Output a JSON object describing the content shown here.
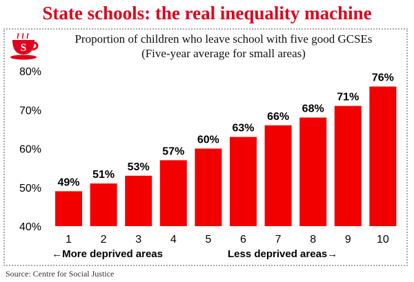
{
  "header": {
    "title": "State schools: the real inequality machine",
    "subtitle_line1": "Proportion of children who leave school with five good GCSEs",
    "subtitle_line2": "(Five-year average for small areas)"
  },
  "logo": {
    "letter": "S",
    "color": "#e0001b"
  },
  "footer": {
    "source": "Source: Centre for Social Justice"
  },
  "colors": {
    "bar": "#f20000",
    "title": "#e0001b"
  },
  "chart_data": {
    "type": "bar",
    "title": "",
    "xlabel": "",
    "ylabel": "",
    "categories": [
      "1",
      "2",
      "3",
      "4",
      "5",
      "6",
      "7",
      "8",
      "9",
      "10"
    ],
    "values": [
      49,
      51,
      53,
      57,
      60,
      63,
      66,
      68,
      71,
      76
    ],
    "data_labels": [
      "49%",
      "51%",
      "53%",
      "57%",
      "60%",
      "63%",
      "66%",
      "68%",
      "71%",
      "76%"
    ],
    "ylim": [
      40,
      80
    ],
    "y_ticks": [
      40,
      50,
      60,
      70,
      80
    ],
    "y_tick_labels": [
      "40%",
      "50%",
      "60%",
      "70%",
      "80%"
    ],
    "grid": false,
    "legend": "none",
    "annotations": {
      "left": "←More deprived areas",
      "right": "Less deprived areas→"
    }
  }
}
